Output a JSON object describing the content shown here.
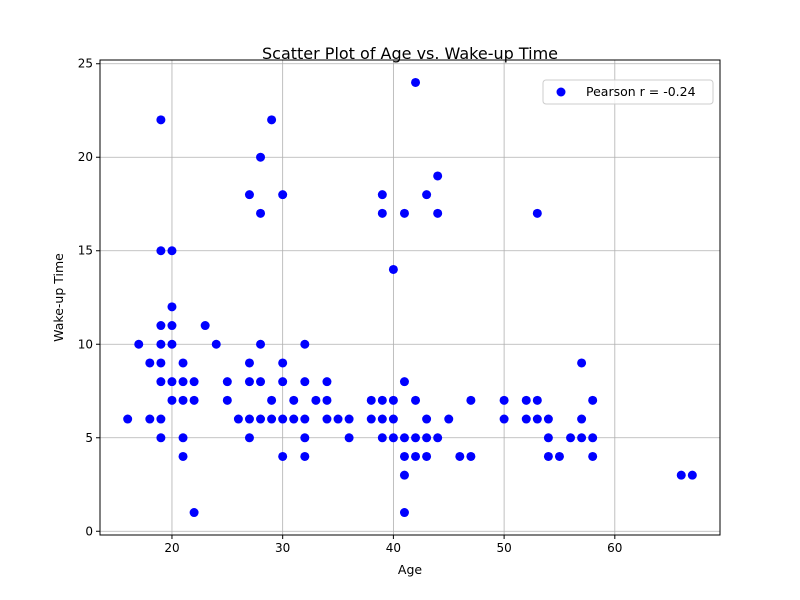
{
  "chart_data": {
    "type": "scatter",
    "title": "Scatter Plot of Age vs. Wake-up Time",
    "xlabel": "Age",
    "ylabel": "Wake-up Time",
    "xlim": [
      13.5,
      69.5
    ],
    "ylim": [
      -0.2,
      25.2
    ],
    "xticks": [
      20,
      30,
      40,
      50,
      60
    ],
    "yticks": [
      0,
      5,
      10,
      15,
      20,
      25
    ],
    "grid": true,
    "legend_position": "top-right",
    "series": [
      {
        "name": "Pearson r = -0.24",
        "color": "#0000ff",
        "points": [
          [
            16,
            6
          ],
          [
            17,
            10
          ],
          [
            18,
            9
          ],
          [
            18,
            6
          ],
          [
            19,
            22
          ],
          [
            19,
            15
          ],
          [
            19,
            11
          ],
          [
            19,
            10
          ],
          [
            19,
            9
          ],
          [
            19,
            8
          ],
          [
            19,
            6
          ],
          [
            19,
            5
          ],
          [
            20,
            15
          ],
          [
            20,
            12
          ],
          [
            20,
            11
          ],
          [
            20,
            10
          ],
          [
            20,
            8
          ],
          [
            20,
            7
          ],
          [
            21,
            9
          ],
          [
            21,
            8
          ],
          [
            21,
            7
          ],
          [
            21,
            5
          ],
          [
            21,
            4
          ],
          [
            22,
            8
          ],
          [
            22,
            7
          ],
          [
            22,
            1
          ],
          [
            23,
            11
          ],
          [
            24,
            10
          ],
          [
            25,
            8
          ],
          [
            25,
            7
          ],
          [
            26,
            6
          ],
          [
            27,
            18
          ],
          [
            27,
            9
          ],
          [
            27,
            8
          ],
          [
            27,
            6
          ],
          [
            27,
            5
          ],
          [
            28,
            20
          ],
          [
            28,
            17
          ],
          [
            28,
            10
          ],
          [
            28,
            8
          ],
          [
            28,
            6
          ],
          [
            29,
            22
          ],
          [
            29,
            7
          ],
          [
            29,
            6
          ],
          [
            30,
            18
          ],
          [
            30,
            9
          ],
          [
            30,
            8
          ],
          [
            30,
            6
          ],
          [
            30,
            4
          ],
          [
            31,
            7
          ],
          [
            31,
            6
          ],
          [
            32,
            10
          ],
          [
            32,
            8
          ],
          [
            32,
            6
          ],
          [
            32,
            5
          ],
          [
            32,
            4
          ],
          [
            33,
            7
          ],
          [
            34,
            8
          ],
          [
            34,
            7
          ],
          [
            34,
            6
          ],
          [
            35,
            6
          ],
          [
            36,
            6
          ],
          [
            36,
            5
          ],
          [
            38,
            7
          ],
          [
            38,
            6
          ],
          [
            39,
            18
          ],
          [
            39,
            17
          ],
          [
            39,
            7
          ],
          [
            39,
            6
          ],
          [
            39,
            5
          ],
          [
            40,
            14
          ],
          [
            40,
            7
          ],
          [
            40,
            6
          ],
          [
            40,
            5
          ],
          [
            41,
            17
          ],
          [
            41,
            8
          ],
          [
            41,
            5
          ],
          [
            41,
            4
          ],
          [
            41,
            3
          ],
          [
            41,
            1
          ],
          [
            42,
            24
          ],
          [
            42,
            7
          ],
          [
            42,
            5
          ],
          [
            42,
            4
          ],
          [
            43,
            18
          ],
          [
            43,
            6
          ],
          [
            43,
            5
          ],
          [
            43,
            4
          ],
          [
            44,
            19
          ],
          [
            44,
            17
          ],
          [
            44,
            5
          ],
          [
            45,
            6
          ],
          [
            46,
            4
          ],
          [
            47,
            7
          ],
          [
            47,
            4
          ],
          [
            50,
            7
          ],
          [
            50,
            6
          ],
          [
            52,
            7
          ],
          [
            52,
            6
          ],
          [
            53,
            17
          ],
          [
            53,
            7
          ],
          [
            53,
            6
          ],
          [
            54,
            6
          ],
          [
            54,
            5
          ],
          [
            54,
            4
          ],
          [
            55,
            4
          ],
          [
            56,
            5
          ],
          [
            57,
            9
          ],
          [
            57,
            6
          ],
          [
            57,
            5
          ],
          [
            58,
            7
          ],
          [
            58,
            5
          ],
          [
            58,
            4
          ],
          [
            66,
            3
          ],
          [
            67,
            3
          ]
        ]
      }
    ]
  }
}
